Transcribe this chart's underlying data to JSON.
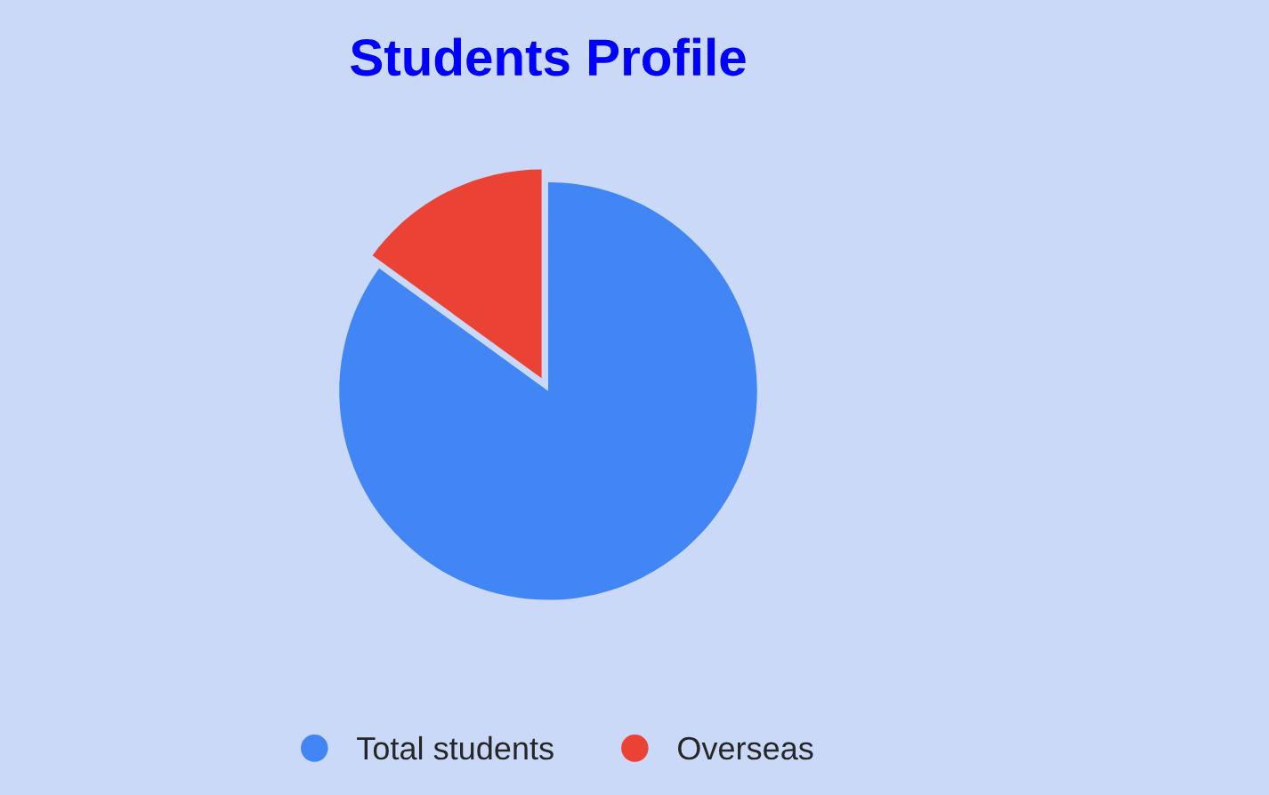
{
  "chart_data": {
    "type": "pie",
    "title": "Students Profile",
    "categories": [
      "Total students",
      "Overseas"
    ],
    "values": [
      85,
      15
    ],
    "colors": [
      "#4285f4",
      "#ea4335"
    ],
    "legend": "bottom"
  }
}
